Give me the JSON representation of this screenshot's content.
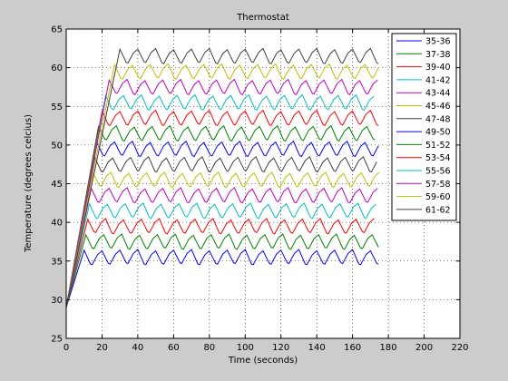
{
  "colors": {
    "figure_bg": "#cccccc",
    "axes_bg": "#ffffff",
    "axis": "#000000",
    "grid": "#000000"
  },
  "chart_data": {
    "type": "line",
    "title": "Thermostat",
    "xlabel": "Time (seconds)",
    "ylabel": "Temperature (degrees celcius)",
    "xlim": [
      0,
      220
    ],
    "ylim": [
      25,
      65
    ],
    "xticks": [
      0,
      20,
      40,
      60,
      80,
      100,
      120,
      140,
      160,
      180,
      200,
      220
    ],
    "yticks": [
      25,
      30,
      35,
      40,
      45,
      50,
      55,
      60,
      65
    ],
    "grid": true,
    "legend_position": "top-right",
    "start_temperature": 29,
    "end_time": 175,
    "oscillation_period": 10,
    "series": [
      {
        "name": "35-36",
        "color": "#0000ff",
        "low": 35,
        "high": 36,
        "ramp_end": 10
      },
      {
        "name": "37-38",
        "color": "#008000",
        "low": 37,
        "high": 38,
        "ramp_end": 11
      },
      {
        "name": "39-40",
        "color": "#ff0000",
        "low": 39,
        "high": 40,
        "ramp_end": 12
      },
      {
        "name": "41-42",
        "color": "#00bfbf",
        "low": 41,
        "high": 42,
        "ramp_end": 13
      },
      {
        "name": "43-44",
        "color": "#bf00bf",
        "low": 43,
        "high": 44,
        "ramp_end": 14
      },
      {
        "name": "45-46",
        "color": "#bfbf00",
        "low": 45,
        "high": 46,
        "ramp_end": 15
      },
      {
        "name": "47-48",
        "color": "#404040",
        "low": 47,
        "high": 48,
        "ramp_end": 16
      },
      {
        "name": "49-50",
        "color": "#0000ff",
        "low": 49,
        "high": 50,
        "ramp_end": 17
      },
      {
        "name": "51-52",
        "color": "#008000",
        "low": 51,
        "high": 52,
        "ramp_end": 18
      },
      {
        "name": "53-54",
        "color": "#ff0000",
        "low": 53,
        "high": 54,
        "ramp_end": 20
      },
      {
        "name": "55-56",
        "color": "#00bfbf",
        "low": 55,
        "high": 56,
        "ramp_end": 22
      },
      {
        "name": "57-58",
        "color": "#bf00bf",
        "low": 57,
        "high": 58,
        "ramp_end": 24
      },
      {
        "name": "59-60",
        "color": "#bfbf00",
        "low": 59,
        "high": 60,
        "ramp_end": 27
      },
      {
        "name": "61-62",
        "color": "#404040",
        "low": 61,
        "high": 62,
        "ramp_end": 30
      }
    ]
  }
}
